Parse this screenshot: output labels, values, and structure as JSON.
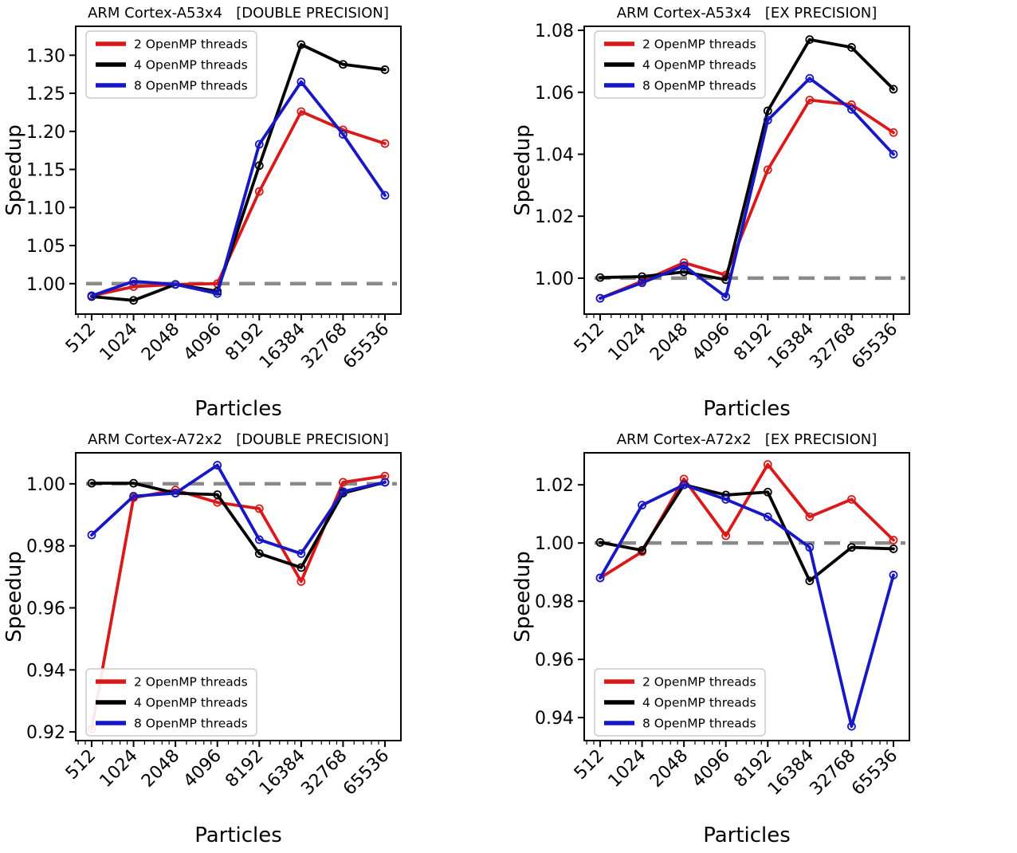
{
  "page": {
    "background": "#ffffff"
  },
  "colors": {
    "red": "#d81a1a",
    "black": "#000000",
    "blue": "#1717c4",
    "baseline_gray": "#8a8a8a",
    "axis": "#000000",
    "legend_border": "#c9c9c9",
    "legend_fill": "#ffffff"
  },
  "chart_data": [
    {
      "type": "line",
      "title": "ARM Cortex-A53x4   [DOUBLE PRECISION]",
      "xlabel": "Particles",
      "ylabel": "Speedup",
      "categories": [
        "512",
        "1024",
        "2048",
        "4096",
        "8192",
        "16384",
        "32768",
        "65536"
      ],
      "x_scale": "log2-categorical",
      "grid": false,
      "ylim": [
        0.96,
        1.338
      ],
      "yticks": [
        1.0,
        1.05,
        1.1,
        1.15,
        1.2,
        1.25,
        1.3
      ],
      "ytick_labels": [
        "1.00",
        "1.05",
        "1.10",
        "1.15",
        "1.20",
        "1.25",
        "1.30"
      ],
      "baseline": 1.0,
      "legend_position": "upper-left",
      "series": [
        {
          "name": "2 OpenMP threads",
          "color_key": "red",
          "values": [
            0.984,
            0.996,
            0.999,
            1.0,
            1.121,
            1.226,
            1.202,
            1.184
          ]
        },
        {
          "name": "4 OpenMP threads",
          "color_key": "black",
          "values": [
            0.983,
            0.978,
            0.999,
            0.99,
            1.155,
            1.314,
            1.288,
            1.281
          ]
        },
        {
          "name": "8 OpenMP threads",
          "color_key": "blue",
          "values": [
            0.984,
            1.003,
            0.999,
            0.987,
            1.183,
            1.265,
            1.196,
            1.116
          ]
        }
      ]
    },
    {
      "type": "line",
      "title": "ARM Cortex-A53x4   [EX PRECISION]",
      "xlabel": "Particles",
      "ylabel": "Speedup",
      "categories": [
        "512",
        "1024",
        "2048",
        "4096",
        "8192",
        "16384",
        "32768",
        "65536"
      ],
      "x_scale": "log2-categorical",
      "grid": false,
      "ylim": [
        0.9884,
        1.0813
      ],
      "yticks": [
        1.0,
        1.02,
        1.04,
        1.06,
        1.08
      ],
      "ytick_labels": [
        "1.00",
        "1.02",
        "1.04",
        "1.06",
        "1.08"
      ],
      "baseline": 1.0,
      "legend_position": "upper-left",
      "series": [
        {
          "name": "2 OpenMP threads",
          "color_key": "red",
          "values": [
            0.9935,
            0.999,
            1.005,
            1.001,
            1.035,
            1.0575,
            1.056,
            1.047
          ]
        },
        {
          "name": "4 OpenMP threads",
          "color_key": "black",
          "values": [
            1.0002,
            1.0005,
            1.002,
            0.9995,
            1.054,
            1.077,
            1.0745,
            1.061
          ]
        },
        {
          "name": "8 OpenMP threads",
          "color_key": "blue",
          "values": [
            0.9935,
            0.9985,
            1.004,
            0.994,
            1.051,
            1.0645,
            1.0545,
            1.04
          ]
        }
      ]
    },
    {
      "type": "line",
      "title": "ARM Cortex-A72x2   [DOUBLE PRECISION]",
      "xlabel": "Particles",
      "ylabel": "Speedup",
      "categories": [
        "512",
        "1024",
        "2048",
        "4096",
        "8192",
        "16384",
        "32768",
        "65536"
      ],
      "x_scale": "log2-categorical",
      "grid": false,
      "ylim": [
        0.9172,
        1.01
      ],
      "yticks": [
        0.92,
        0.94,
        0.96,
        0.98,
        1.0
      ],
      "ytick_labels": [
        "0.92",
        "0.94",
        "0.96",
        "0.98",
        "1.00"
      ],
      "baseline": 1.0,
      "legend_position": "lower-left",
      "series": [
        {
          "name": "2 OpenMP threads",
          "color_key": "red",
          "values": [
            0.921,
            0.9955,
            0.998,
            0.994,
            0.992,
            0.9685,
            1.0005,
            1.0025
          ]
        },
        {
          "name": "4 OpenMP threads",
          "color_key": "black",
          "values": [
            1.0002,
            1.0002,
            0.997,
            0.9965,
            0.9775,
            0.973,
            0.997,
            1.0005
          ]
        },
        {
          "name": "8 OpenMP threads",
          "color_key": "blue",
          "values": [
            0.9835,
            0.996,
            0.997,
            1.006,
            0.982,
            0.9775,
            0.9975,
            1.0005
          ]
        }
      ]
    },
    {
      "type": "line",
      "title": "ARM Cortex-A72x2   [EX PRECISION]",
      "xlabel": "Particles",
      "ylabel": "Speedup",
      "categories": [
        "512",
        "1024",
        "2048",
        "4096",
        "8192",
        "16384",
        "32768",
        "65536"
      ],
      "x_scale": "log2-categorical",
      "grid": false,
      "ylim": [
        0.9321,
        1.031
      ],
      "yticks": [
        0.94,
        0.96,
        0.98,
        1.0,
        1.02
      ],
      "ytick_labels": [
        "0.94",
        "0.96",
        "0.98",
        "1.00",
        "1.02"
      ],
      "baseline": 1.0,
      "legend_position": "lower-left",
      "series": [
        {
          "name": "2 OpenMP threads",
          "color_key": "red",
          "values": [
            0.988,
            0.997,
            1.022,
            1.0025,
            1.027,
            1.009,
            1.015,
            1.001
          ]
        },
        {
          "name": "4 OpenMP threads",
          "color_key": "black",
          "values": [
            1.0002,
            0.9975,
            1.02,
            1.0165,
            1.0175,
            0.987,
            0.9985,
            0.998
          ]
        },
        {
          "name": "8 OpenMP threads",
          "color_key": "blue",
          "values": [
            0.988,
            1.013,
            1.02,
            1.015,
            1.009,
            0.9985,
            0.937,
            0.989
          ]
        }
      ]
    }
  ]
}
